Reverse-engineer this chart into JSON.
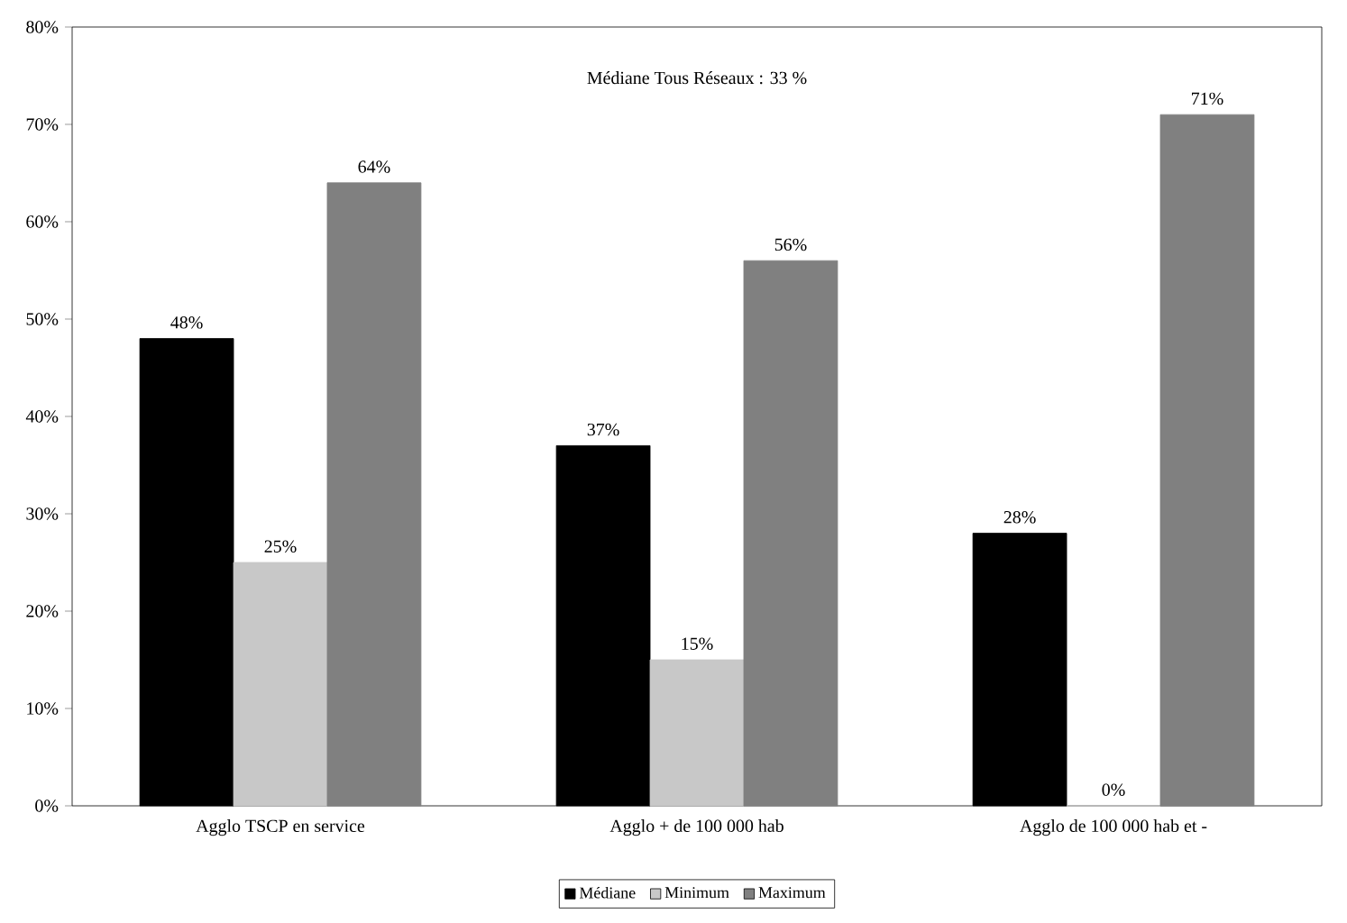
{
  "chart_data": {
    "type": "bar",
    "categories": [
      "Agglo TSCP en service",
      "Agglo + de 100 000 hab",
      "Agglo de 100 000 hab et -"
    ],
    "series": [
      {
        "name": "Médiane",
        "color": "#000000",
        "values": [
          48,
          37,
          28
        ],
        "value_labels": [
          "48%",
          "37%",
          "28%"
        ]
      },
      {
        "name": "Minimum",
        "color": "#c8c8c8",
        "values": [
          25,
          15,
          0
        ],
        "value_labels": [
          "25%",
          "15%",
          "0%"
        ]
      },
      {
        "name": "Maximum",
        "color": "#808080",
        "values": [
          64,
          56,
          71
        ],
        "value_labels": [
          "64%",
          "56%",
          "71%"
        ]
      }
    ],
    "ylim": [
      0,
      80
    ],
    "yticks": [
      {
        "value": 0,
        "label": "0%"
      },
      {
        "value": 10,
        "label": "10%"
      },
      {
        "value": 20,
        "label": "20%"
      },
      {
        "value": 30,
        "label": "30%"
      },
      {
        "value": 40,
        "label": "40%"
      },
      {
        "value": 50,
        "label": "50%"
      },
      {
        "value": 60,
        "label": "60%"
      },
      {
        "value": 70,
        "label": "70%"
      },
      {
        "value": 80,
        "label": "80%"
      }
    ],
    "annotations": [
      "Médiane Tous Réseaux : 33 %"
    ],
    "legend": "bottom",
    "grid": false
  }
}
